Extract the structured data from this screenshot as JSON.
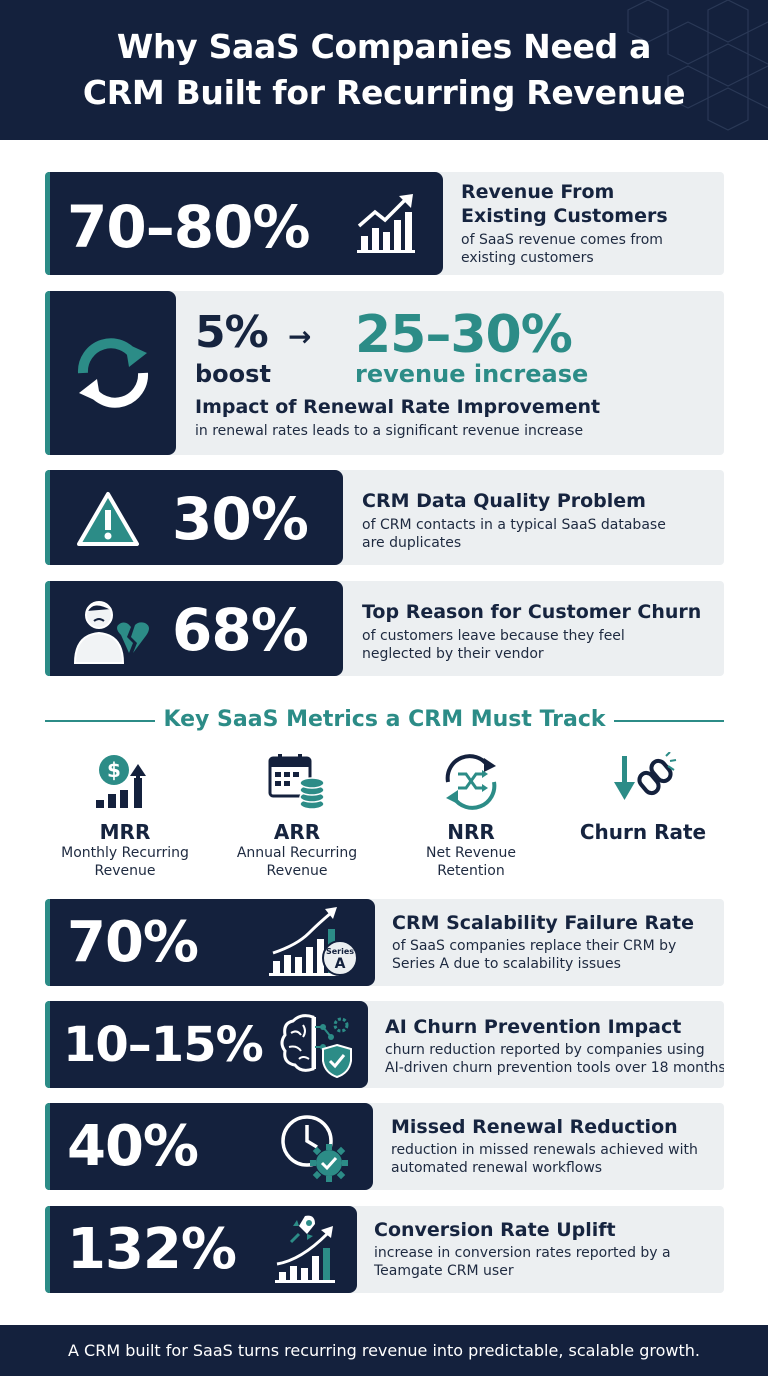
{
  "header": {
    "title_line1": "Why SaaS Companies Need a",
    "title_line2": "CRM Built for Recurring Revenue"
  },
  "stats": [
    {
      "value": "70–80%",
      "title": "Revenue From",
      "title2": "Existing Customers",
      "desc1": "of SaaS revenue comes from",
      "desc2": "existing customers",
      "icon": "bar-chart-growth-icon"
    },
    {
      "value_from": "5%",
      "from_label": "boost",
      "arrow": "→",
      "value_to": "25–30%",
      "to_label": "revenue increase",
      "title": "Impact of Renewal Rate Improvement",
      "desc1": "in renewal rates leads to a significant revenue increase",
      "icon": "refresh-icon"
    },
    {
      "value": "30%",
      "title": "CRM Data Quality Problem",
      "desc1": "of CRM contacts in a typical SaaS database",
      "desc2": "are duplicates",
      "icon": "warning-icon"
    },
    {
      "value": "68%",
      "title": "Top Reason for Customer Churn",
      "desc1": "of customers leave because they feel",
      "desc2": "neglected by their vendor",
      "icon": "sad-customer-broken-heart-icon"
    }
  ],
  "metrics_section": {
    "title": "Key SaaS Metrics a CRM Must Track",
    "items": [
      {
        "name": "MRR",
        "label1": "Monthly Recurring",
        "label2": "Revenue",
        "icon": "dollar-chart-icon"
      },
      {
        "name": "ARR",
        "label1": "Annual Recurring",
        "label2": "Revenue",
        "icon": "calendar-coins-icon"
      },
      {
        "name": "NRR",
        "label1": "Net Revenue",
        "label2": "Retention",
        "icon": "shuffle-cycle-icon"
      },
      {
        "name": "Churn Rate",
        "label1": "",
        "label2": "",
        "icon": "broken-chain-icon"
      }
    ]
  },
  "stats2": [
    {
      "value": "70%",
      "title": "CRM Scalability Failure Rate",
      "desc1": "of SaaS companies replace their CRM by",
      "desc2": "Series A due to scalability issues",
      "badge1": "Series",
      "badge2": "A",
      "icon": "growth-chart-series-a-icon"
    },
    {
      "value": "10–15%",
      "title": "AI Churn Prevention Impact",
      "desc1": "churn reduction reported by companies using",
      "desc2": "AI-driven churn prevention tools over 18 months",
      "icon": "brain-shield-icon"
    },
    {
      "value": "40%",
      "title": "Missed Renewal Reduction",
      "desc1": "reduction in missed renewals achieved with",
      "desc2": "automated renewal workflows",
      "icon": "clock-gear-icon"
    },
    {
      "value": "132%",
      "title": "Conversion Rate Uplift",
      "desc1": "increase in conversion rates reported by a",
      "desc2": "Teamgate CRM user",
      "icon": "rocket-chart-icon"
    }
  ],
  "footer": {
    "text": "A CRM built for SaaS turns recurring revenue into predictable, scalable growth."
  },
  "colors": {
    "navy": "#14213d",
    "teal": "#2c8c87",
    "light": "#eceff1"
  }
}
